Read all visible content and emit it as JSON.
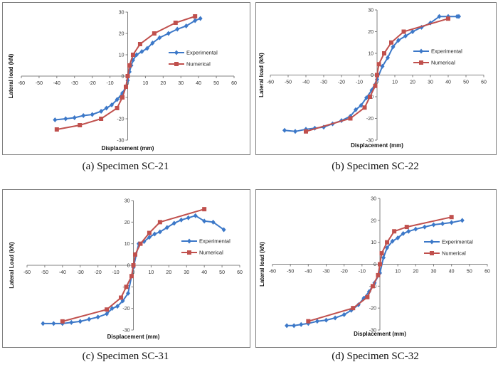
{
  "captions": [
    "(a) Specimen SC-21",
    "(b) Specimen SC-22",
    "(c) Specimen SC-31",
    "(d) Specimen SC-32"
  ],
  "colors": {
    "experimental": "#3c78c8",
    "numerical": "#c0504d",
    "axis": "#808080"
  },
  "chart_data": [
    {
      "type": "line",
      "xlabel": "Displacement (mm)",
      "ylabel": "Lateral load (kN)",
      "xlim": [
        -60,
        60
      ],
      "ylim": [
        -30,
        30
      ],
      "xticks": [
        -60,
        -50,
        -40,
        -30,
        -20,
        -10,
        0,
        10,
        20,
        30,
        40,
        50,
        60
      ],
      "yticks": [
        -30,
        -20,
        -10,
        0,
        10,
        20,
        30
      ],
      "grid": false,
      "legend": "right",
      "series": [
        {
          "name": "Experimental",
          "marker": "diamond",
          "x": [
            -41,
            -35,
            -30,
            -25,
            -20,
            -15,
            -12,
            -9,
            -6,
            -3,
            -1,
            0,
            1,
            2,
            3,
            5,
            8,
            11,
            14,
            18,
            23,
            28,
            33,
            38,
            41
          ],
          "y": [
            -20.5,
            -20,
            -19.5,
            -18.5,
            -18,
            -16.5,
            -15,
            -13.5,
            -11,
            -8,
            -5,
            -2,
            2,
            5,
            7.5,
            10,
            11.5,
            13,
            15.5,
            18,
            20,
            22,
            23.5,
            26,
            27
          ]
        },
        {
          "name": "Numerical",
          "marker": "square",
          "x": [
            -40,
            -27,
            -15,
            -6,
            -3,
            -1,
            0,
            1,
            3,
            7,
            15,
            27,
            38
          ],
          "y": [
            -25,
            -23,
            -20,
            -15,
            -10,
            -5,
            0,
            5,
            10,
            15,
            20,
            25,
            28
          ]
        }
      ]
    },
    {
      "type": "line",
      "xlabel": "Displacement (mm)",
      "ylabel": "Lateral load (kN)",
      "xlim": [
        -60,
        60
      ],
      "ylim": [
        -30,
        30
      ],
      "xticks": [
        -60,
        -50,
        -40,
        -30,
        -20,
        -10,
        0,
        10,
        20,
        30,
        40,
        50,
        60
      ],
      "yticks": [
        -30,
        -20,
        -10,
        0,
        10,
        20,
        30
      ],
      "grid": false,
      "legend": "right",
      "series": [
        {
          "name": "Experimental",
          "marker": "diamond",
          "x": [
            -52,
            -46,
            -40,
            -35,
            -30,
            -25,
            -20,
            -15,
            -12,
            -9,
            -6,
            -3,
            0,
            3,
            6,
            9,
            12,
            16,
            20,
            25,
            30,
            35,
            40,
            45,
            46
          ],
          "y": [
            -25.5,
            -26,
            -25,
            -24.5,
            -24,
            -22.5,
            -21,
            -19,
            -16,
            -14,
            -10.5,
            -7,
            -2,
            4,
            8,
            13,
            16,
            18,
            20,
            22,
            24,
            27,
            27,
            27,
            27
          ]
        },
        {
          "name": "Numerical",
          "marker": "square",
          "x": [
            -40,
            -15,
            -7,
            -4,
            -1,
            0,
            1,
            4,
            8,
            15,
            40
          ],
          "y": [
            -26,
            -20,
            -15,
            -10,
            -5,
            0,
            5,
            10,
            15,
            20,
            26
          ]
        }
      ]
    },
    {
      "type": "line",
      "xlabel": "Displacement (mm)",
      "ylabel": "Lateral Load (kN)",
      "xlim": [
        -60,
        60
      ],
      "ylim": [
        -30,
        30
      ],
      "xticks": [
        -60,
        -50,
        -40,
        -30,
        -20,
        -10,
        0,
        10,
        20,
        30,
        40,
        50,
        60
      ],
      "yticks": [
        -30,
        -20,
        -10,
        0,
        10,
        20,
        30
      ],
      "grid": false,
      "legend": "right",
      "series": [
        {
          "name": "Experimental",
          "marker": "diamond",
          "x": [
            -51,
            -45,
            -40,
            -35,
            -30,
            -25,
            -20,
            -15,
            -12,
            -9,
            -6,
            -3,
            0,
            3,
            6,
            9,
            12,
            15,
            19,
            23,
            27,
            31,
            35,
            40,
            45,
            51
          ],
          "y": [
            -27,
            -27,
            -27,
            -26.5,
            -26,
            -25,
            -24,
            -22.5,
            -20,
            -19,
            -16.5,
            -13,
            -1,
            10,
            11,
            13,
            14.5,
            15.5,
            17.5,
            19.5,
            21,
            22,
            23,
            20.5,
            20,
            16.5
          ]
        },
        {
          "name": "Numerical",
          "marker": "square",
          "x": [
            -40,
            -15,
            -7,
            -4,
            -1,
            0,
            1,
            4,
            9,
            15,
            40
          ],
          "y": [
            -26,
            -20.5,
            -15,
            -10,
            -5,
            0,
            5,
            10,
            15,
            20,
            26
          ]
        }
      ]
    },
    {
      "type": "line",
      "xlabel": "Displacement (mm)",
      "ylabel": "Lateral load (kN)",
      "xlim": [
        -60,
        60
      ],
      "ylim": [
        -30,
        30
      ],
      "xticks": [
        -60,
        -50,
        -40,
        -30,
        -20,
        -10,
        0,
        10,
        20,
        30,
        40,
        50,
        60
      ],
      "yticks": [
        -30,
        -20,
        -10,
        0,
        10,
        20,
        30
      ],
      "grid": false,
      "legend": "right",
      "series": [
        {
          "name": "Experimental",
          "marker": "diamond",
          "x": [
            -52,
            -48,
            -44,
            -40,
            -35,
            -30,
            -25,
            -20,
            -16,
            -12,
            -9,
            -6,
            -3,
            0,
            2,
            4,
            7,
            10,
            13,
            16,
            20,
            25,
            30,
            35,
            40,
            46
          ],
          "y": [
            -28,
            -28,
            -27.5,
            -27,
            -26,
            -25.5,
            -24.5,
            -23,
            -21,
            -18.5,
            -15.5,
            -12.5,
            -8.5,
            -4,
            3,
            7.5,
            10.5,
            12,
            14,
            15,
            16,
            17,
            18,
            18.5,
            19,
            20
          ]
        },
        {
          "name": "Numerical",
          "marker": "square",
          "x": [
            -40,
            -15,
            -7,
            -4,
            -1,
            0,
            1,
            4,
            8,
            15,
            40
          ],
          "y": [
            -26,
            -20,
            -15,
            -10,
            -5,
            0,
            5,
            10,
            15,
            17,
            21.5
          ]
        }
      ]
    }
  ]
}
